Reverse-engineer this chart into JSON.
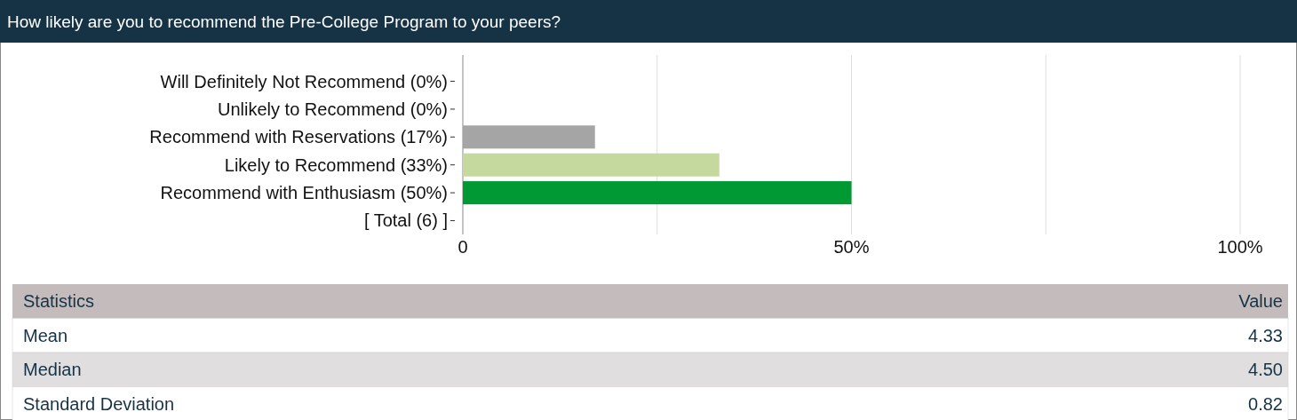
{
  "chart_data": [
    {
      "type": "bar",
      "orientation": "horizontal",
      "title": "How likely are you to recommend the Pre-College Program to your peers?",
      "categories": [
        "Will Definitely Not Recommend (0%)",
        "Unlikely to Recommend (0%)",
        "Recommend with Reservations (17%)",
        "Likely to Recommend (33%)",
        "Recommend with Enthusiasm (50%)",
        "[ Total (6) ]"
      ],
      "values": [
        0,
        0,
        17,
        33,
        50,
        null
      ],
      "colors": [
        "#a5a5a5",
        "#a5a5a5",
        "#a5a5a5",
        "#c5d89e",
        "#009933",
        null
      ],
      "xlim": [
        0,
        100
      ],
      "xticks": [
        {
          "value": 0,
          "label": "0"
        },
        {
          "value": 25,
          "label": null
        },
        {
          "value": 50,
          "label": "50%"
        },
        {
          "value": 75,
          "label": null
        },
        {
          "value": 100,
          "label": "100%"
        }
      ],
      "grid": "x"
    },
    {
      "type": "other",
      "xlabel": "Statistics",
      "ylabel": "Value",
      "categories": [
        "Mean",
        "Median",
        "Standard Deviation"
      ],
      "values": [
        4.33,
        4.5,
        0.82
      ],
      "value_labels": [
        "4.33",
        "4.50",
        "0.82"
      ]
    }
  ]
}
